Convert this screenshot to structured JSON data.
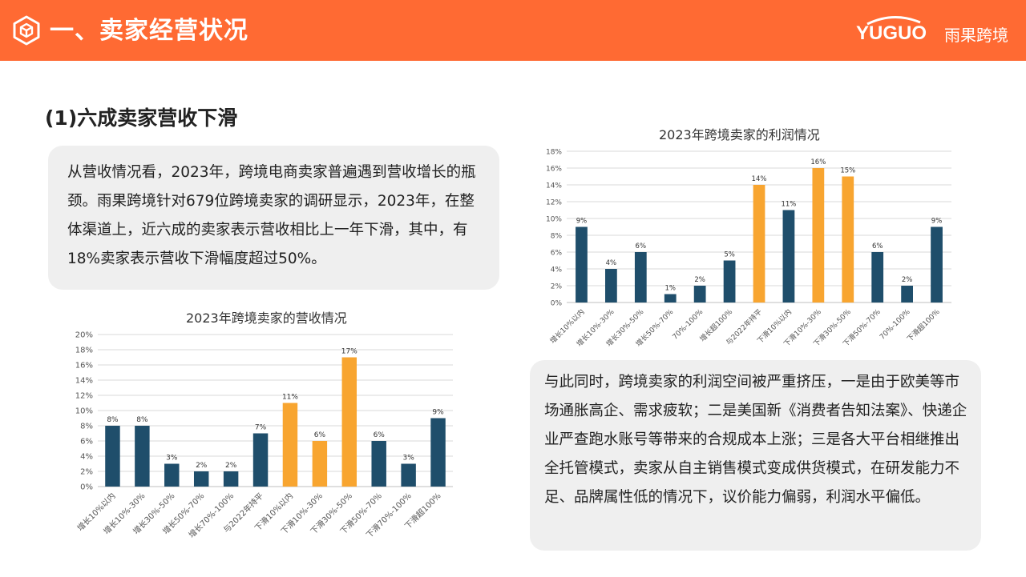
{
  "header": {
    "title": "一、卖家经营状况",
    "logo_en": "YUGUO",
    "logo_cn": "雨果跨境",
    "icon": "cube-icon",
    "color": "#ff6a33"
  },
  "section": {
    "title": "(1)六成卖家营收下滑"
  },
  "paragraphs": {
    "revenue": "从营收情况看，2023年，跨境电商卖家普遍遇到营收增长的瓶颈。雨果跨境针对679位跨境卖家的调研显示，2023年，在整体渠道上，近六成的卖家表示营收相比上一年下滑，其中，有18%卖家表示营收下滑幅度超过50%。",
    "profit": "与此同时，跨境卖家的利润空间被严重挤压，一是由于欧美等市场通胀高企、需求疲软；二是美国新《消费者告知法案》、快递企业严查跑水账号等带来的合规成本上涨；三是各大平台相继推出全托管模式，卖家从自主销售模式变成供货模式，在研发能力不足、品牌属性低的情况下，议价能力偏弱，利润水平偏低。"
  },
  "chart_data": [
    {
      "type": "bar",
      "title": "2023年跨境卖家的营收情况",
      "categories": [
        "增长10%以内",
        "增长10%-30%",
        "增长30%-50%",
        "增长50%-70%",
        "增长70%-100%",
        "与2022年持平",
        "下滑10%以内",
        "下滑10%-30%",
        "下滑30%-50%",
        "下滑50%-70%",
        "下滑70%-100%",
        "下滑超100%"
      ],
      "values": [
        8,
        8,
        3,
        2,
        2,
        7,
        11,
        6,
        17,
        6,
        3,
        9
      ],
      "labels": [
        "8%",
        "8%",
        "3%",
        "2%",
        "2%",
        "7%",
        "11%",
        "6%",
        "17%",
        "6%",
        "3%",
        "9%"
      ],
      "highlight": [
        false,
        false,
        false,
        false,
        false,
        false,
        true,
        true,
        true,
        false,
        false,
        false
      ],
      "yticks": [
        "0%",
        "2%",
        "4%",
        "6%",
        "8%",
        "10%",
        "12%",
        "14%",
        "16%",
        "18%",
        "20%"
      ],
      "ylim": [
        0,
        20
      ],
      "grid": true,
      "colors": {
        "base": "#1f4e6b",
        "highlight": "#f8a530"
      }
    },
    {
      "type": "bar",
      "title": "2023年跨境卖家的利润情况",
      "categories": [
        "增长10%以内",
        "增长10%-30%",
        "增长30%-50%",
        "增长50%-70%",
        "70%-100%",
        "增长超100%",
        "与2022年持平",
        "下滑10%以内",
        "下滑10%-30%",
        "下滑30%-50%",
        "下滑50%-70%",
        "70%-100%",
        "下滑超100%"
      ],
      "values": [
        9,
        4,
        6,
        1,
        2,
        5,
        14,
        11,
        16,
        15,
        6,
        2,
        9
      ],
      "labels": [
        "9%",
        "4%",
        "6%",
        "1%",
        "2%",
        "5%",
        "14%",
        "11%",
        "16%",
        "15%",
        "6%",
        "2%",
        "9%"
      ],
      "highlight": [
        false,
        false,
        false,
        false,
        false,
        false,
        true,
        false,
        true,
        true,
        false,
        false,
        false
      ],
      "yticks": [
        "0%",
        "2%",
        "4%",
        "6%",
        "8%",
        "10%",
        "12%",
        "14%",
        "16%",
        "18%"
      ],
      "ylim": [
        0,
        18
      ],
      "grid": true,
      "colors": {
        "base": "#1f4e6b",
        "highlight": "#f8a530"
      }
    }
  ]
}
